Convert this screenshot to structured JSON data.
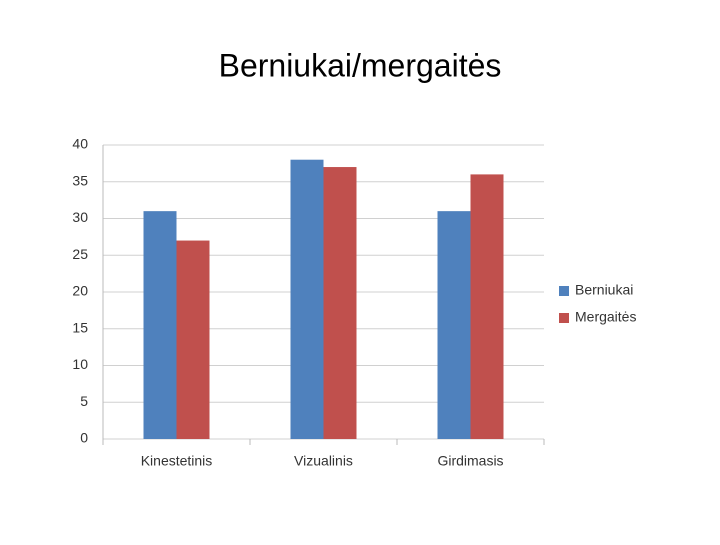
{
  "chart_data": {
    "type": "bar",
    "title": "Berniukai/mergaitės",
    "categories": [
      "Kinestetinis",
      "Vizualinis",
      "Girdimasis"
    ],
    "series": [
      {
        "name": "Berniukai",
        "color": "#4f81bd",
        "values": [
          31,
          38,
          31
        ]
      },
      {
        "name": "Mergaitės",
        "color": "#c0504d",
        "values": [
          27,
          37,
          36
        ]
      }
    ],
    "ylim": [
      0,
      40
    ],
    "yticks": [
      0,
      5,
      10,
      15,
      20,
      25,
      30,
      35,
      40
    ],
    "grid": true,
    "legend": "right"
  }
}
